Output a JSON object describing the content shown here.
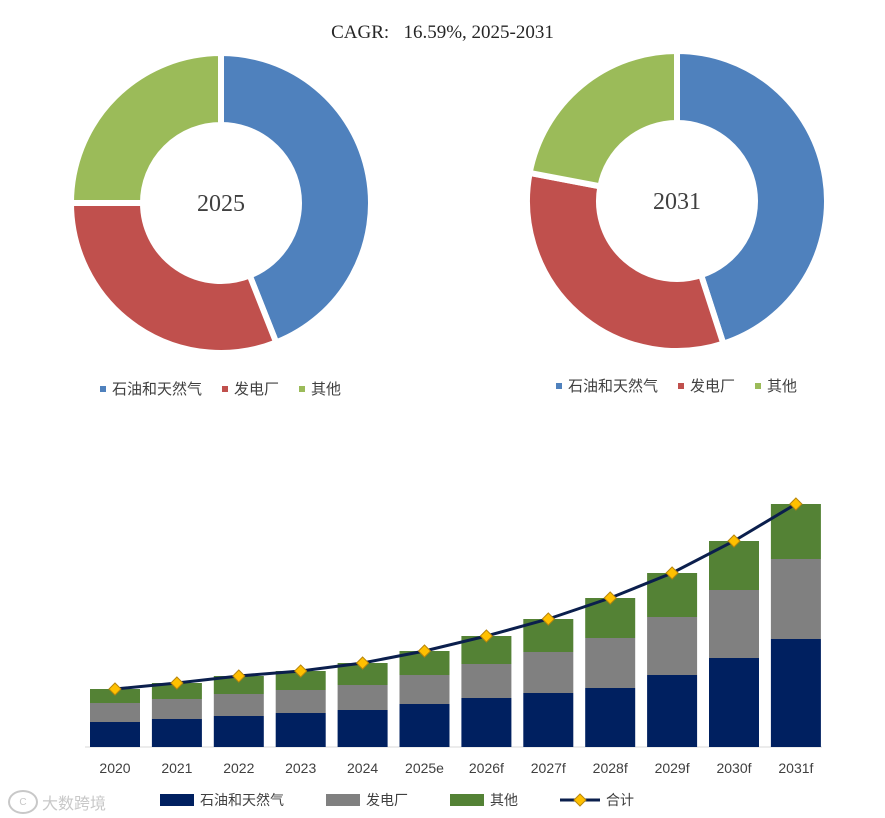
{
  "title": "CAGR:   16.59%, 2025-2031",
  "colors": {
    "donut_oil_gas": "#4f81bd",
    "donut_power": "#c0504d",
    "donut_other": "#9bbb59",
    "bar_oil_gas": "#002060",
    "bar_power": "#808080",
    "bar_other": "#548235",
    "total_line": "#0b1f4d",
    "total_marker": "#ffc000"
  },
  "watermark": "大数跨境",
  "chart_data": [
    {
      "type": "pie",
      "center_label": "2025",
      "labels": [
        "石油和天然气",
        "发电厂",
        "其他"
      ],
      "values": [
        44,
        31,
        25
      ],
      "legend": [
        "石油和天然气",
        "发电厂",
        "其他"
      ]
    },
    {
      "type": "pie",
      "center_label": "2031",
      "labels": [
        "石油和天然气",
        "发电厂",
        "其他"
      ],
      "values": [
        45,
        33,
        22
      ],
      "legend": [
        "石油和天然气",
        "发电厂",
        "其他"
      ]
    },
    {
      "type": "bar",
      "stacked": true,
      "categories": [
        "2020",
        "2021",
        "2022",
        "2023",
        "2024",
        "2025e",
        "2026f",
        "2027f",
        "2028f",
        "2029f",
        "2030f",
        "2031f"
      ],
      "series": [
        {
          "name": "石油和天然气",
          "values": [
            25,
            28,
            31,
            34,
            37,
            43,
            49,
            54,
            59,
            72,
            89,
            108
          ]
        },
        {
          "name": "发电厂",
          "values": [
            19,
            20,
            22,
            23,
            25,
            29,
            34,
            41,
            50,
            58,
            68,
            80
          ]
        },
        {
          "name": "其他",
          "values": [
            14,
            16,
            18,
            19,
            22,
            24,
            28,
            33,
            40,
            44,
            49,
            55
          ]
        }
      ],
      "line": {
        "name": "合计",
        "values": [
          58,
          64,
          71,
          76,
          84,
          96,
          111,
          128,
          149,
          174,
          206,
          243
        ]
      },
      "legend": [
        "石油和天然气",
        "发电厂",
        "其他",
        "合计"
      ],
      "ylim": [
        0,
        250
      ],
      "grid": false,
      "yaxis_visible": false
    }
  ]
}
